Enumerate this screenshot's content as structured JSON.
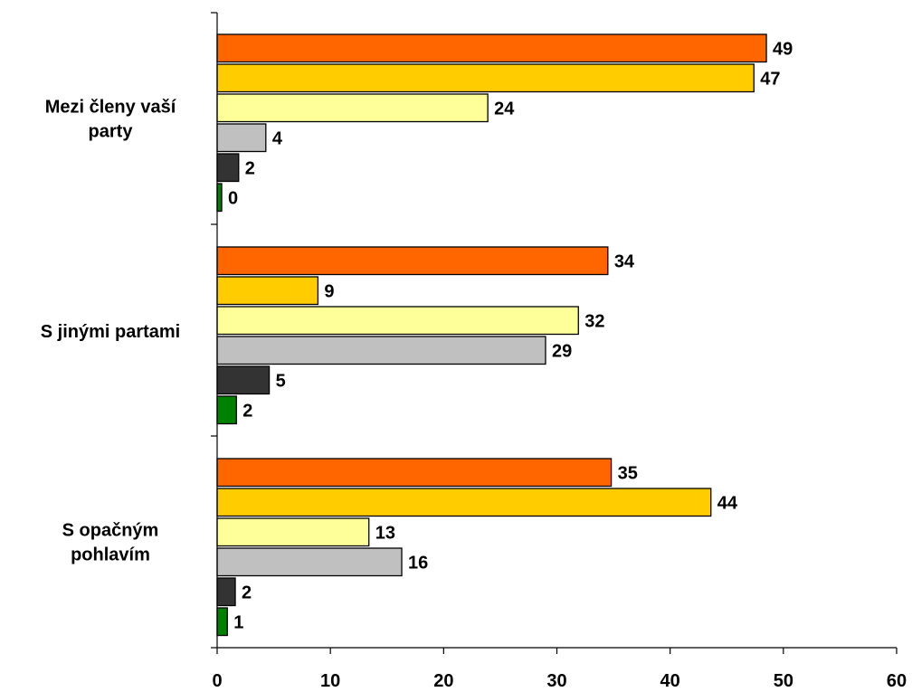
{
  "chart_data": {
    "type": "bar",
    "orientation": "horizontal",
    "categories": [
      "Mezi členy vaší party",
      "S jinými partami",
      "S opačným pohlavím"
    ],
    "category_lines": [
      [
        "Mezi členy vaší",
        "party"
      ],
      [
        "S jinými partami"
      ],
      [
        "S opačným",
        "pohlavím"
      ]
    ],
    "series": [
      {
        "color": "#FF6600",
        "values": [
          49,
          34,
          35
        ]
      },
      {
        "color": "#FFCC00",
        "values": [
          47,
          9,
          44
        ]
      },
      {
        "color": "#FFFF99",
        "values": [
          24,
          32,
          13
        ]
      },
      {
        "color": "#C0C0C0",
        "values": [
          4,
          29,
          16
        ]
      },
      {
        "color": "#333333",
        "values": [
          2,
          5,
          2
        ]
      },
      {
        "color": "#008000",
        "values": [
          0,
          2,
          1
        ]
      }
    ],
    "bar_lengths": [
      [
        48.5,
        34.5,
        34.8
      ],
      [
        47.4,
        8.9,
        43.6
      ],
      [
        23.9,
        31.9,
        13.4
      ],
      [
        4.3,
        29.0,
        16.3
      ],
      [
        1.9,
        4.6,
        1.6
      ],
      [
        0.4,
        1.7,
        0.9
      ]
    ],
    "xlim": [
      0,
      60
    ],
    "xticks": [
      "0",
      "10",
      "20",
      "30",
      "40",
      "50",
      "60"
    ],
    "xtick_values": [
      0,
      10,
      20,
      30,
      40,
      50,
      60
    ],
    "legend": "none",
    "grid": false
  }
}
